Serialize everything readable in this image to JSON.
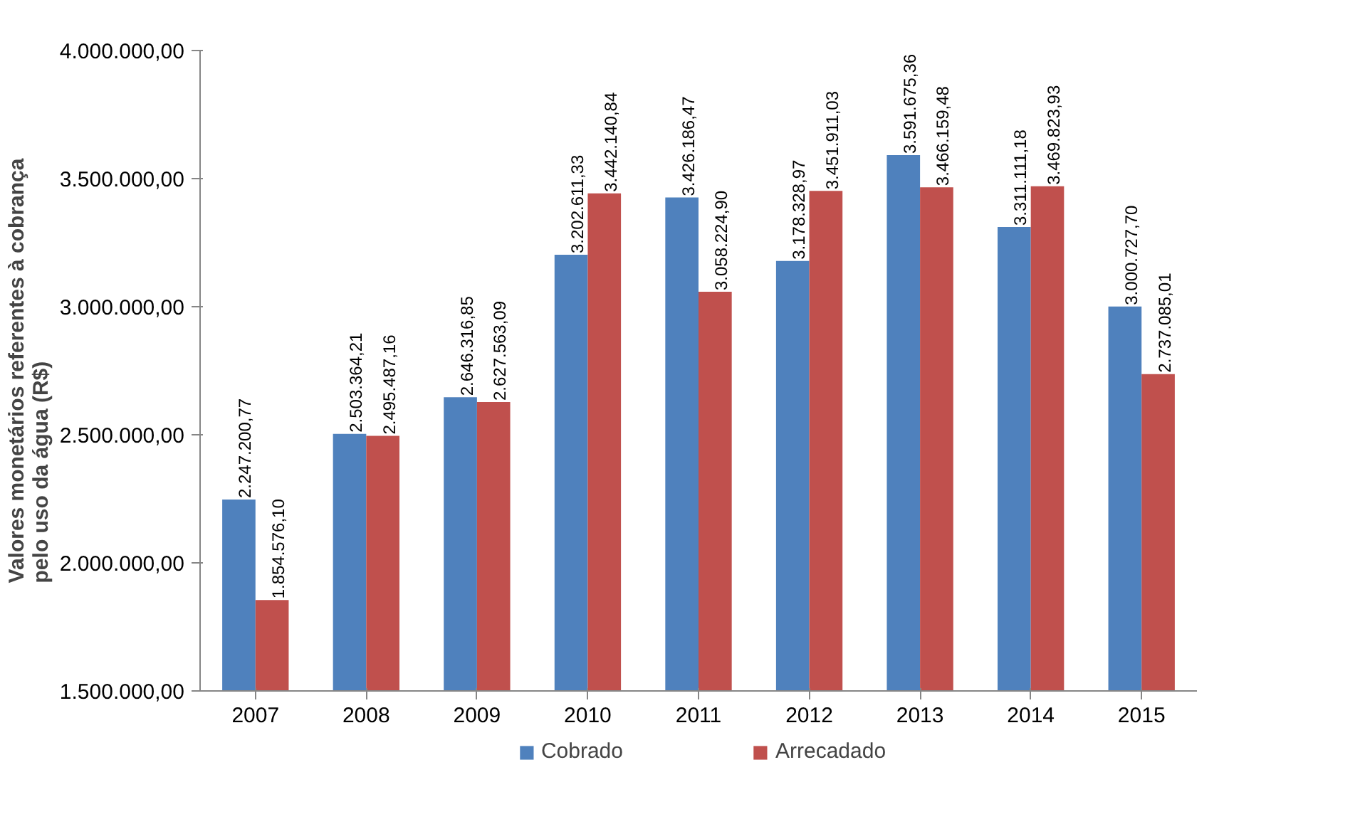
{
  "chart_data": {
    "type": "bar",
    "ylabel": "Valores monetários referentes à cobrança\npelo uso da água (R$)",
    "categories": [
      "2007",
      "2008",
      "2009",
      "2010",
      "2011",
      "2012",
      "2013",
      "2014",
      "2015"
    ],
    "series": [
      {
        "name": "Cobrado",
        "color": "#4f81bd",
        "values": [
          2247200.77,
          2503364.21,
          2646316.85,
          3202611.33,
          3426186.47,
          3178328.97,
          3591675.36,
          3311111.18,
          3000727.7
        ],
        "value_labels": [
          "2.247.200,77",
          "2.503.364,21",
          "2.646.316,85",
          "3.202.611,33",
          "3.426.186,47",
          "3.178.328,97",
          "3.591.675,36",
          "3.311.111,18",
          "3.000.727,70"
        ]
      },
      {
        "name": "Arrecadado",
        "color": "#c0504d",
        "values": [
          1854576.1,
          2495487.16,
          2627563.09,
          3442140.84,
          3058224.9,
          3451911.03,
          3466159.48,
          3469823.93,
          2737085.01
        ],
        "value_labels": [
          "1.854.576,10",
          "2.495.487,16",
          "2.627.563,09",
          "3.442.140,84",
          "3.058.224,90",
          "3.451.911,03",
          "3.466.159,48",
          "3.469.823,93",
          "2.737.085,01"
        ]
      }
    ],
    "ylim": [
      1500000,
      4000000
    ],
    "yticks": [
      {
        "value": 1500000,
        "label": "1.500.000,00"
      },
      {
        "value": 2000000,
        "label": "2.000.000,00"
      },
      {
        "value": 2500000,
        "label": "2.500.000,00"
      },
      {
        "value": 3000000,
        "label": "3.000.000,00"
      },
      {
        "value": 3500000,
        "label": "3.500.000,00"
      },
      {
        "value": 4000000,
        "label": "4.000.000,00"
      }
    ],
    "grid": false,
    "legend": "bottom"
  }
}
